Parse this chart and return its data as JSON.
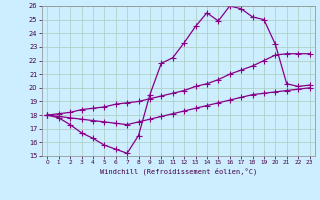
{
  "xlabel": "Windchill (Refroidissement éolien,°C)",
  "background_color": "#cceeff",
  "grid_color": "#aaccbb",
  "line_color": "#880088",
  "xlim": [
    -0.5,
    23.5
  ],
  "ylim": [
    15,
    26
  ],
  "xticks": [
    0,
    1,
    2,
    3,
    4,
    5,
    6,
    7,
    8,
    9,
    10,
    11,
    12,
    13,
    14,
    15,
    16,
    17,
    18,
    19,
    20,
    21,
    22,
    23
  ],
  "yticks": [
    15,
    16,
    17,
    18,
    19,
    20,
    21,
    22,
    23,
    24,
    25,
    26
  ],
  "series": [
    {
      "comment": "top wiggly line - peaks at 14 ~26, 15~25, 16~26, 17~25.8",
      "x": [
        0,
        1,
        2,
        3,
        4,
        5,
        6,
        7,
        8,
        9,
        10,
        11,
        12,
        13,
        14,
        15,
        16,
        17,
        18,
        19,
        20,
        21,
        22,
        23
      ],
      "y": [
        18.0,
        17.8,
        17.3,
        16.7,
        16.3,
        15.8,
        15.5,
        15.2,
        16.5,
        19.5,
        21.8,
        22.2,
        23.3,
        24.5,
        25.5,
        24.9,
        26.0,
        25.8,
        25.2,
        25.0,
        23.2,
        20.3,
        20.1,
        20.2
      ]
    },
    {
      "x": [
        0,
        1,
        2,
        3,
        4,
        5,
        6,
        7,
        8,
        9,
        10,
        11,
        12,
        13,
        14,
        15,
        16,
        17,
        18,
        19,
        20,
        21,
        22,
        23
      ],
      "y": [
        18.0,
        18.1,
        18.2,
        18.4,
        18.5,
        18.6,
        18.8,
        18.9,
        19.0,
        19.2,
        19.4,
        19.6,
        19.8,
        20.1,
        20.3,
        20.6,
        21.0,
        21.3,
        21.6,
        22.0,
        22.4,
        22.5,
        22.5,
        22.5
      ]
    },
    {
      "x": [
        0,
        1,
        2,
        3,
        4,
        5,
        6,
        7,
        8,
        9,
        10,
        11,
        12,
        13,
        14,
        15,
        16,
        17,
        18,
        19,
        20,
        21,
        22,
        23
      ],
      "y": [
        18.0,
        17.9,
        17.8,
        17.7,
        17.6,
        17.5,
        17.4,
        17.3,
        17.5,
        17.7,
        17.9,
        18.1,
        18.3,
        18.5,
        18.7,
        18.9,
        19.1,
        19.3,
        19.5,
        19.6,
        19.7,
        19.8,
        19.9,
        20.0
      ]
    }
  ]
}
